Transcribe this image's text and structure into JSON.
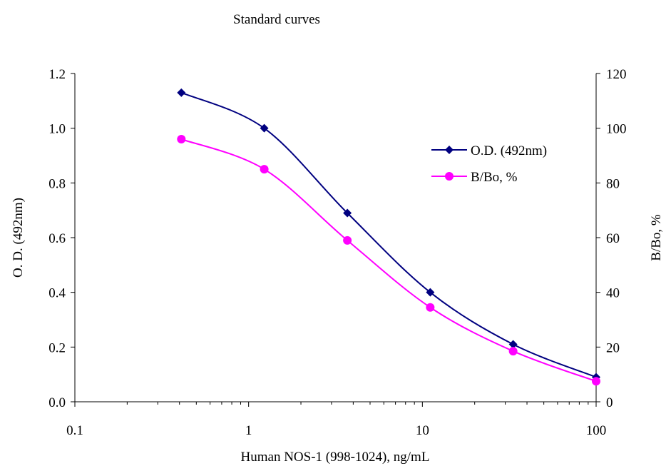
{
  "chart_data": {
    "type": "line",
    "title": "Standard curves",
    "xlabel": "Human NOS-1 (998-1024), ng/mL",
    "ylabel": "O. D. (492nm)",
    "y2label": "B/Bo, %",
    "xscale": "log",
    "xlim": [
      0.1,
      100
    ],
    "ylim": [
      0,
      1.2
    ],
    "y2lim": [
      0,
      120
    ],
    "x_ticks": [
      "0.1",
      "1",
      "10",
      "100"
    ],
    "y_ticks": [
      "0.0",
      "0.2",
      "0.4",
      "0.6",
      "0.8",
      "1.0",
      "1.2"
    ],
    "y2_ticks": [
      "0",
      "20",
      "40",
      "60",
      "80",
      "100",
      "120"
    ],
    "x": [
      0.41,
      1.23,
      3.7,
      11.1,
      33.3,
      100
    ],
    "series": [
      {
        "name": "O.D. (492nm)",
        "axis": "left",
        "marker": "diamond",
        "color": "#000080",
        "values": [
          1.13,
          1.0,
          0.69,
          0.4,
          0.21,
          0.09
        ]
      },
      {
        "name": "B/Bo, %",
        "axis": "right",
        "marker": "circle",
        "color": "#FF00FF",
        "values": [
          96,
          85,
          59,
          34.5,
          18.5,
          7.5
        ]
      }
    ],
    "legend": "right"
  }
}
